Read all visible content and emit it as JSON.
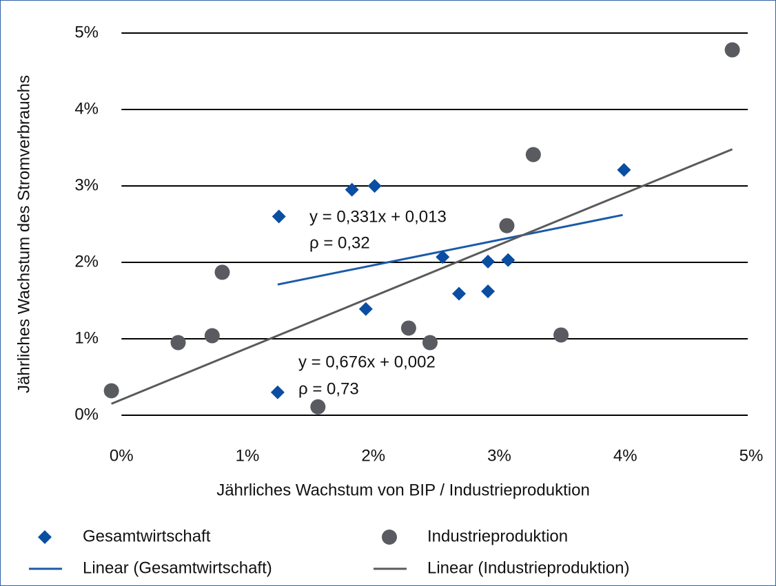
{
  "chart_data": {
    "type": "scatter",
    "x_label": "Jährliches Wachstum von BIP / Industrieproduktion",
    "y_label": "Jährliches Wachstum des Stromverbrauchs",
    "annotations": [
      "y = 0,331x + 0,013",
      "ρ = 0,32",
      "y = 0,676x + 0,002",
      "ρ = 0,73"
    ],
    "xlim": [
      -0.1,
      5
    ],
    "ylim": [
      0,
      5
    ],
    "xticks": [
      {
        "value": 0,
        "label": "0%"
      },
      {
        "value": 1,
        "label": "1%"
      },
      {
        "value": 2,
        "label": "2%"
      },
      {
        "value": 3,
        "label": "3%"
      },
      {
        "value": 4,
        "label": "4%"
      },
      {
        "value": 5,
        "label": "5%"
      }
    ],
    "yticks": [
      {
        "value": 0,
        "label": "0%"
      },
      {
        "value": 1,
        "label": "1%"
      },
      {
        "value": 2,
        "label": "2%"
      },
      {
        "value": 3,
        "label": "3%"
      },
      {
        "value": 4,
        "label": "4%"
      },
      {
        "value": 5,
        "label": "5%"
      }
    ],
    "grid": true,
    "legend": "bottom",
    "series": [
      {
        "name": "Gesamtwirtschaft",
        "color": "#0a4ea2",
        "marker": "diamond",
        "x": [
          1.25,
          1.83,
          2.01,
          1.94,
          2.55,
          2.68,
          2.91,
          2.91,
          3.07,
          3.99,
          1.24
        ],
        "values": [
          2.6,
          2.95,
          3.0,
          1.39,
          2.07,
          1.59,
          2.01,
          1.62,
          2.03,
          3.21,
          0.3
        ]
      },
      {
        "name": "Industrieproduktion",
        "color": "#595b60",
        "marker": "circle",
        "x": [
          -0.08,
          0.45,
          0.72,
          0.8,
          1.56,
          2.28,
          2.45,
          3.06,
          3.27,
          3.49,
          4.85
        ],
        "values": [
          0.32,
          0.95,
          1.04,
          1.87,
          0.11,
          1.14,
          0.95,
          2.48,
          3.41,
          1.05,
          4.78
        ]
      },
      {
        "name": "Linear (Gesamtwirtschaft)",
        "color": "#1a5aa8",
        "marker": "line",
        "x": [
          1.24,
          3.98
        ],
        "values": [
          1.71,
          2.62
        ]
      },
      {
        "name": "Linear (Industrieproduktion)",
        "color": "#5a5a5a",
        "marker": "line",
        "x": [
          -0.08,
          4.85
        ],
        "values": [
          0.15,
          3.48
        ]
      }
    ]
  }
}
